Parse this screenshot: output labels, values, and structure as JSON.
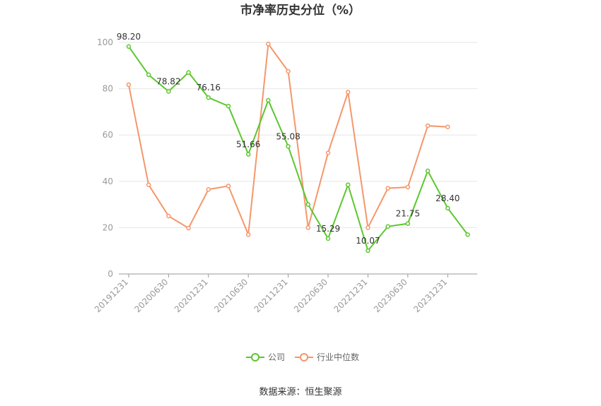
{
  "chart_data": {
    "type": "line",
    "title": "市净率历史分位（%）",
    "categories": [
      "20191231",
      "20200331",
      "20200630",
      "20200930",
      "20201231",
      "20210331",
      "20210630",
      "20210930",
      "20211231",
      "20220331",
      "20220630",
      "20220930",
      "20221231",
      "20230331",
      "20230630",
      "20230930",
      "20231231",
      "20240331"
    ],
    "x_tick_labels": [
      "20191231",
      "20200630",
      "20201231",
      "20210630",
      "20211231",
      "20220630",
      "20221231",
      "20230630",
      "20231231"
    ],
    "ylim": [
      0,
      100
    ],
    "yticks": [
      0,
      20,
      40,
      60,
      80,
      100
    ],
    "grid": true,
    "legend_position": "bottom",
    "series": [
      {
        "name": "公司",
        "color": "#5cc72f",
        "values": [
          98.2,
          86,
          78.82,
          87,
          76.16,
          72.5,
          51.66,
          75,
          55.08,
          30,
          15.29,
          38.5,
          10.07,
          20.5,
          21.75,
          44.5,
          28.4,
          17
        ],
        "data_labels": {
          "0": "98.20",
          "2": "78.82",
          "4": "76.16",
          "6": "51.66",
          "8": "55.08",
          "10": "15.29",
          "12": "10.07",
          "14": "21.75",
          "16": "28.40"
        }
      },
      {
        "name": "行业中位数",
        "color": "#f5976b",
        "values": [
          81.7,
          38.5,
          25,
          19.8,
          36.5,
          38,
          17,
          99.3,
          87.5,
          20,
          52.3,
          78.5,
          20,
          37,
          37.5,
          64,
          63.5,
          null
        ]
      }
    ]
  },
  "source_text": "数据来源：恒生聚源"
}
